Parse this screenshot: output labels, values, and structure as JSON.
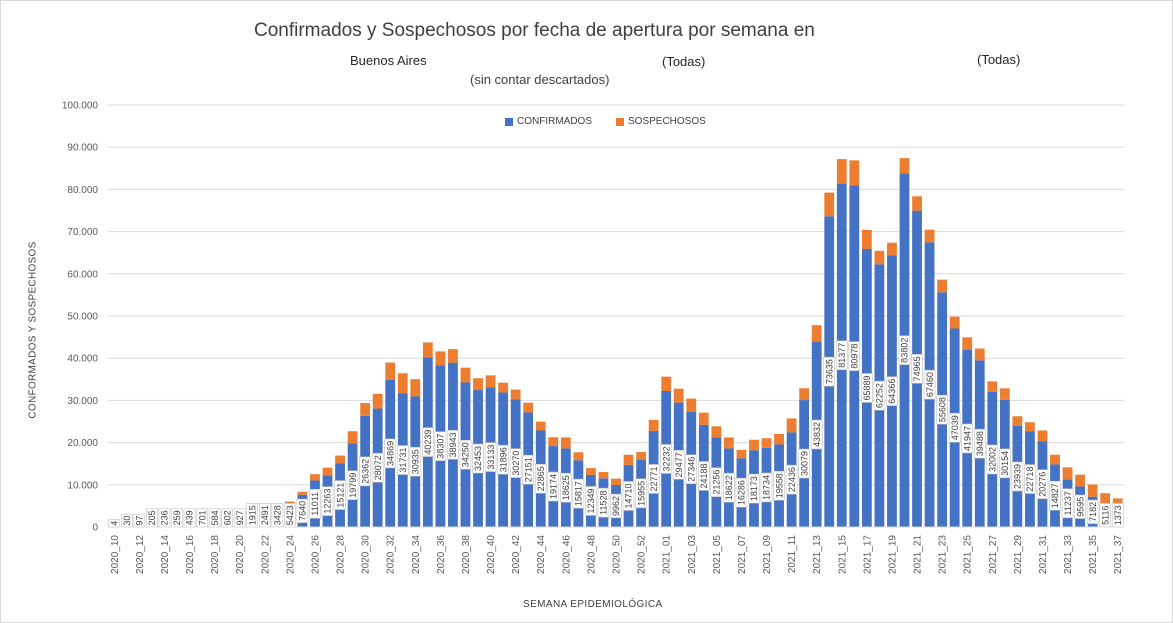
{
  "chart_data": {
    "type": "bar",
    "stacked": true,
    "title": "Confirmados y Sospechosos por fecha de apertura por semana en",
    "filters": [
      "Buenos Aires",
      "(Todas)",
      "(Todas)"
    ],
    "subtitle": "(sin contar descartados)",
    "xlabel": "SEMANA EPIDEMIOLÓGICA",
    "ylabel": "CONFORMADOS Y SOSPECHOSOS",
    "ylim": [
      0,
      100000
    ],
    "yticks": [
      "0",
      "10.000",
      "20.000",
      "30.000",
      "40.000",
      "50.000",
      "60.000",
      "70.000",
      "80.000",
      "90.000",
      "100.000"
    ],
    "legend_position": "top",
    "grid": true,
    "colors": {
      "confirmados": "#4472c4",
      "sospechosos": "#ed7d31"
    },
    "categories": [
      "2020_10",
      "2020_11",
      "2020_12",
      "2020_13",
      "2020_14",
      "2020_15",
      "2020_16",
      "2020_17",
      "2020_18",
      "2020_19",
      "2020_20",
      "2020_21",
      "2020_22",
      "2020_23",
      "2020_24",
      "2020_25",
      "2020_26",
      "2020_27",
      "2020_28",
      "2020_29",
      "2020_30",
      "2020_31",
      "2020_32",
      "2020_33",
      "2020_34",
      "2020_35",
      "2020_36",
      "2020_37",
      "2020_38",
      "2020_39",
      "2020_40",
      "2020_41",
      "2020_42",
      "2020_43",
      "2020_44",
      "2020_45",
      "2020_46",
      "2020_47",
      "2020_48",
      "2020_49",
      "2020_50",
      "2020_51",
      "2020_52",
      "2020_53",
      "2021_01",
      "2021_02",
      "2021_03",
      "2021_04",
      "2021_05",
      "2021_06",
      "2021_07",
      "2021_08",
      "2021_09",
      "2021_10",
      "2021_11",
      "2021_12",
      "2021_13",
      "2021_14",
      "2021_15",
      "2021_16",
      "2021_17",
      "2021_18",
      "2021_19",
      "2021_20",
      "2021_21",
      "2021_22",
      "2021_23",
      "2021_24",
      "2021_25",
      "2021_26",
      "2021_27",
      "2021_28",
      "2021_29",
      "2021_30",
      "2021_31",
      "2021_32",
      "2021_33",
      "2021_34",
      "2021_35",
      "2021_36",
      "2021_37"
    ],
    "series": [
      {
        "name": "CONFIRMADOS",
        "values": [
          4,
          30,
          97,
          205,
          236,
          259,
          439,
          701,
          584,
          602,
          927,
          1915,
          2491,
          3428,
          5423,
          7640,
          11011,
          12263,
          15121,
          19799,
          26362,
          28072,
          34869,
          31731,
          30935,
          40239,
          38307,
          38943,
          34250,
          32453,
          33133,
          31896,
          30270,
          27151,
          22865,
          19174,
          18625,
          15817,
          12349,
          11528,
          9962,
          14710,
          15955,
          22771,
          32232,
          29477,
          27346,
          24188,
          21256,
          18622,
          16286,
          18173,
          18734,
          19558,
          22436,
          30079,
          43832,
          73635,
          81377,
          80978,
          65889,
          62252,
          64366,
          83802,
          74965,
          67460,
          55608,
          47039,
          41947,
          39488,
          32002,
          30154,
          23939,
          22718,
          20276,
          14827,
          11237,
          9595,
          7182,
          5116,
          1373
        ]
      },
      {
        "name": "SOSPECHOSOS",
        "values": [
          0,
          0,
          0,
          0,
          0,
          0,
          0,
          0,
          0,
          0,
          0,
          0,
          0,
          0,
          600,
          700,
          1500,
          1800,
          1800,
          2900,
          3000,
          3500,
          4100,
          4700,
          4100,
          3500,
          3300,
          3200,
          3500,
          2800,
          2800,
          2300,
          2300,
          2300,
          2100,
          2100,
          2600,
          1900,
          1600,
          1500,
          1500,
          2400,
          1800,
          2600,
          3400,
          3300,
          3100,
          2900,
          2600,
          2600,
          2000,
          2500,
          2300,
          2500,
          3300,
          2800,
          4000,
          5600,
          5800,
          5900,
          4500,
          3200,
          3000,
          3600,
          3400,
          3000,
          3000,
          2800,
          3000,
          2800,
          2500,
          2700,
          2300,
          2100,
          2600,
          2300,
          2900,
          2800,
          2900,
          2900,
          5400
        ]
      }
    ],
    "data_labels": "CONFIRMADOS values shown inside bars (rotated)"
  }
}
